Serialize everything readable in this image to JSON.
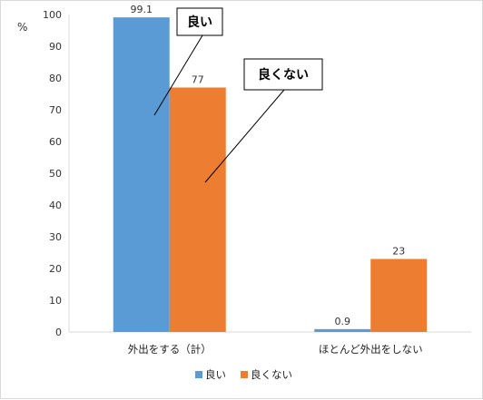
{
  "chart_data": {
    "type": "bar",
    "ylabel": "%",
    "ylim": [
      0,
      100
    ],
    "yticks": [
      0,
      10,
      20,
      30,
      40,
      50,
      60,
      70,
      80,
      90,
      100
    ],
    "categories": [
      "外出をする（計）",
      "ほとんど外出をしない"
    ],
    "series": [
      {
        "name": "良い",
        "color": "#5b9bd5",
        "values": [
          99.1,
          0.9
        ],
        "labels": [
          "99.1",
          "0.9"
        ]
      },
      {
        "name": "良くない",
        "color": "#ed7d31",
        "values": [
          77,
          23
        ],
        "labels": [
          "77",
          "23"
        ]
      }
    ],
    "callouts": [
      "良い",
      "良くない"
    ],
    "legend_position": "bottom",
    "grid": false
  }
}
